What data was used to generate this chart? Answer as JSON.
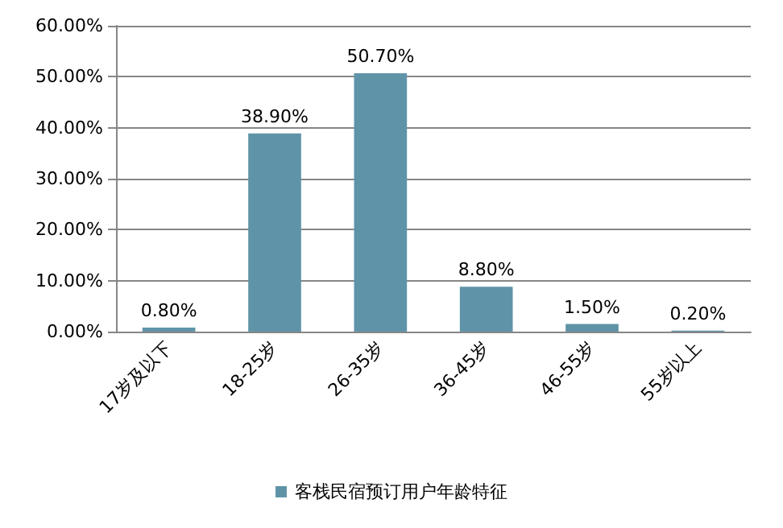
{
  "chart_data": {
    "type": "bar",
    "categories": [
      "17岁及以下",
      "18-25岁",
      "26-35岁",
      "36-45岁",
      "46-55岁",
      "55岁以上"
    ],
    "series": [
      {
        "name": "客栈民宿预订用户年龄特征",
        "color": "#5f94a8",
        "values": [
          0.8,
          38.9,
          50.7,
          8.8,
          1.5,
          0.2
        ],
        "value_labels": [
          "0.80%",
          "38.90%",
          "50.70%",
          "8.80%",
          "1.50%",
          "0.20%"
        ]
      }
    ],
    "ylim": [
      0,
      60
    ],
    "yticks": [
      {
        "value": 0,
        "label": "0.00%"
      },
      {
        "value": 10,
        "label": "10.00%"
      },
      {
        "value": 20,
        "label": "20.00%"
      },
      {
        "value": 30,
        "label": "30.00%"
      },
      {
        "value": 40,
        "label": "40.00%"
      },
      {
        "value": 50,
        "label": "50.00%"
      },
      {
        "value": 60,
        "label": "60.00%"
      }
    ],
    "grid": "y",
    "legend": "bottom"
  }
}
